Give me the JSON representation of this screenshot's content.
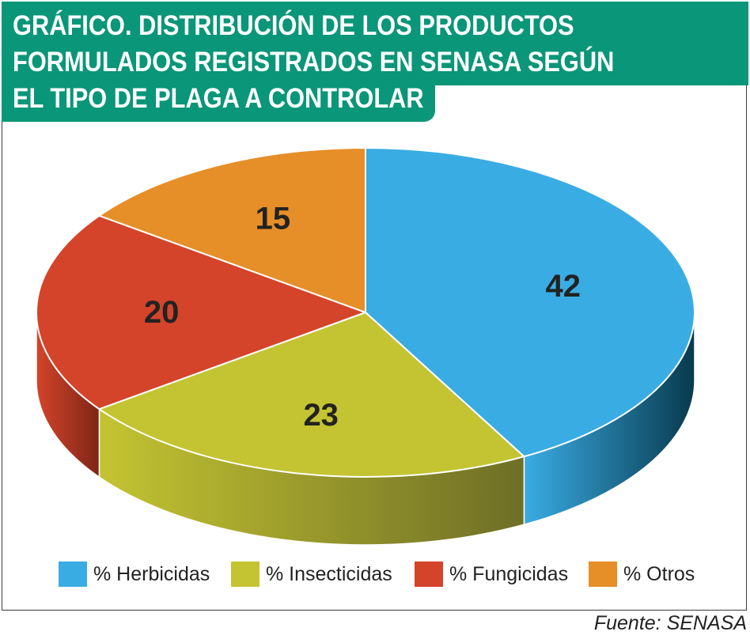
{
  "header": {
    "title_lines": [
      "GRÁFICO. DISTRIBUCIÓN DE LOS PRODUCTOS",
      "FORMULADOS REGISTRADOS EN SENASA SEGÚN",
      "EL TIPO DE PLAGA A CONTROLAR"
    ],
    "band_color": "#0a9678"
  },
  "chart_data": {
    "type": "pie",
    "title": "GRÁFICO. DISTRIBUCIÓN DE LOS PRODUCTOS FORMULADOS REGISTRADOS EN SENASA SEGÚN EL TIPO DE PLAGA A CONTROLAR",
    "style": "3d",
    "legend_position": "bottom",
    "start_angle_deg": 0,
    "direction": "clockwise",
    "slices": [
      {
        "label": "% Herbicidas",
        "value": 42,
        "data_label": "42",
        "color": "#3aace4",
        "side_color": "#083a4e"
      },
      {
        "label": "% Insecticidas",
        "value": 23,
        "data_label": "23",
        "color": "#c4c432",
        "side_color": "#6e6e26"
      },
      {
        "label": "% Fungicidas",
        "value": 20,
        "data_label": "20",
        "color": "#d4442a",
        "side_color": "#7e2616"
      },
      {
        "label": "% Otros",
        "value": 15,
        "data_label": "15",
        "color": "#e68e28",
        "side_color": "#8c5216"
      }
    ]
  },
  "source": {
    "text": "Fuente: SENASA"
  }
}
